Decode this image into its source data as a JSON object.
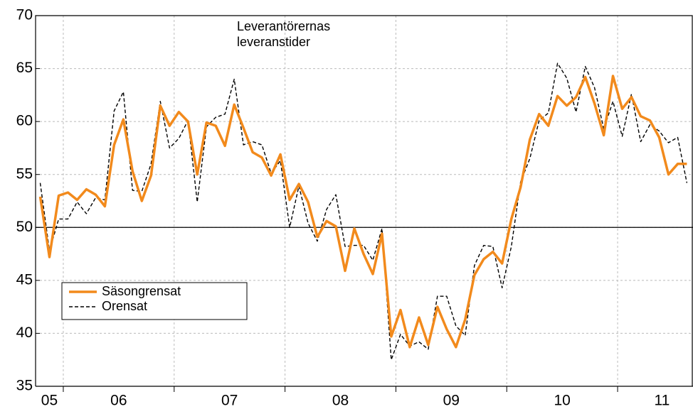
{
  "chart_data": {
    "type": "line",
    "title": [
      "Leverantörernas",
      "leveranstider"
    ],
    "x": [
      2005.7917,
      2005.875,
      2005.9583,
      2006.0417,
      2006.125,
      2006.2083,
      2006.2917,
      2006.375,
      2006.4583,
      2006.5417,
      2006.625,
      2006.7083,
      2006.7917,
      2006.875,
      2006.9583,
      2007.0417,
      2007.125,
      2007.2083,
      2007.2917,
      2007.375,
      2007.4583,
      2007.5417,
      2007.625,
      2007.7083,
      2007.7917,
      2007.875,
      2007.9583,
      2008.0417,
      2008.125,
      2008.2083,
      2008.2917,
      2008.375,
      2008.4583,
      2008.5417,
      2008.625,
      2008.7083,
      2008.7917,
      2008.875,
      2008.9583,
      2009.0417,
      2009.125,
      2009.2083,
      2009.2917,
      2009.375,
      2009.4583,
      2009.5417,
      2009.625,
      2009.7083,
      2009.7917,
      2009.875,
      2009.9583,
      2010.0417,
      2010.125,
      2010.2083,
      2010.2917,
      2010.375,
      2010.4583,
      2010.5417,
      2010.625,
      2010.7083,
      2010.7917,
      2010.875,
      2010.9583,
      2011.0417,
      2011.125,
      2011.2083,
      2011.2917,
      2011.375,
      2011.4583,
      2011.5417,
      2011.625
    ],
    "series": [
      {
        "name": "Säsongrensat",
        "color": "#f28a1c",
        "style": "solid",
        "values": [
          52.9,
          47.2,
          53.0,
          53.3,
          52.6,
          53.6,
          53.1,
          52.0,
          57.8,
          60.2,
          55.3,
          52.5,
          54.9,
          61.5,
          59.6,
          60.9,
          60.0,
          55.0,
          59.9,
          59.6,
          57.7,
          61.6,
          59.4,
          57.1,
          56.6,
          54.9,
          56.9,
          52.6,
          54.1,
          52.4,
          49.1,
          50.6,
          50.1,
          45.9,
          49.9,
          47.5,
          45.6,
          49.4,
          39.7,
          42.2,
          38.7,
          41.5,
          38.9,
          42.5,
          40.4,
          38.7,
          41.3,
          45.5,
          47.0,
          47.7,
          46.6,
          50.8,
          53.8,
          58.3,
          60.7,
          59.6,
          62.4,
          61.5,
          62.3,
          64.2,
          61.7,
          58.7,
          64.3,
          61.2,
          62.3,
          60.5,
          60.1,
          58.5,
          55.0,
          56.0,
          56.0
        ]
      },
      {
        "name": "Orensat",
        "color": "#000000",
        "style": "dashed",
        "values": [
          54.2,
          47.8,
          50.8,
          50.8,
          52.4,
          51.3,
          52.8,
          52.6,
          61.0,
          62.8,
          53.5,
          53.4,
          56.0,
          61.9,
          57.5,
          58.4,
          60.1,
          52.4,
          59.5,
          60.4,
          60.7,
          64.0,
          57.8,
          58.1,
          57.8,
          55.1,
          56.3,
          50.0,
          53.9,
          50.4,
          48.7,
          51.7,
          53.1,
          48.2,
          48.3,
          48.3,
          46.9,
          49.9,
          37.5,
          39.9,
          38.8,
          39.2,
          38.5,
          43.5,
          43.5,
          40.7,
          39.8,
          46.4,
          48.3,
          48.2,
          44.3,
          48.2,
          54.3,
          56.5,
          60.1,
          60.8,
          65.5,
          64.1,
          60.9,
          65.2,
          63.2,
          59.3,
          61.9,
          58.6,
          62.6,
          58.1,
          59.7,
          59.1,
          58.0,
          58.5,
          54.2
        ]
      }
    ],
    "xlim": [
      2005.75,
      2011.68
    ],
    "xticks": [
      {
        "value": 2005.875,
        "label": "05"
      },
      {
        "value": 2006.5,
        "label": "06"
      },
      {
        "value": 2007.5,
        "label": "07"
      },
      {
        "value": 2008.5,
        "label": "08"
      },
      {
        "value": 2009.5,
        "label": "09"
      },
      {
        "value": 2010.5,
        "label": "10"
      },
      {
        "value": 2011.4,
        "label": "11"
      }
    ],
    "xgrid": [
      2006,
      2007,
      2008,
      2009,
      2010,
      2011
    ],
    "ylim": [
      35,
      70
    ],
    "yticks": [
      35,
      40,
      45,
      50,
      55,
      60,
      65,
      70
    ],
    "hline": 50,
    "grid": true
  }
}
